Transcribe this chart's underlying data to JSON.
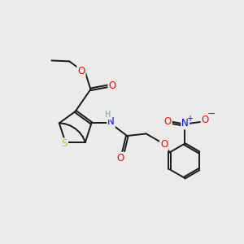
{
  "background_color": "#ebebeb",
  "atom_colors": {
    "O": "#ff0000",
    "N": "#0000ff",
    "S": "#cccc00",
    "H": "#7fa0a0",
    "C": "#1a1a1a"
  },
  "figsize": [
    3.0,
    3.0
  ],
  "dpi": 100
}
